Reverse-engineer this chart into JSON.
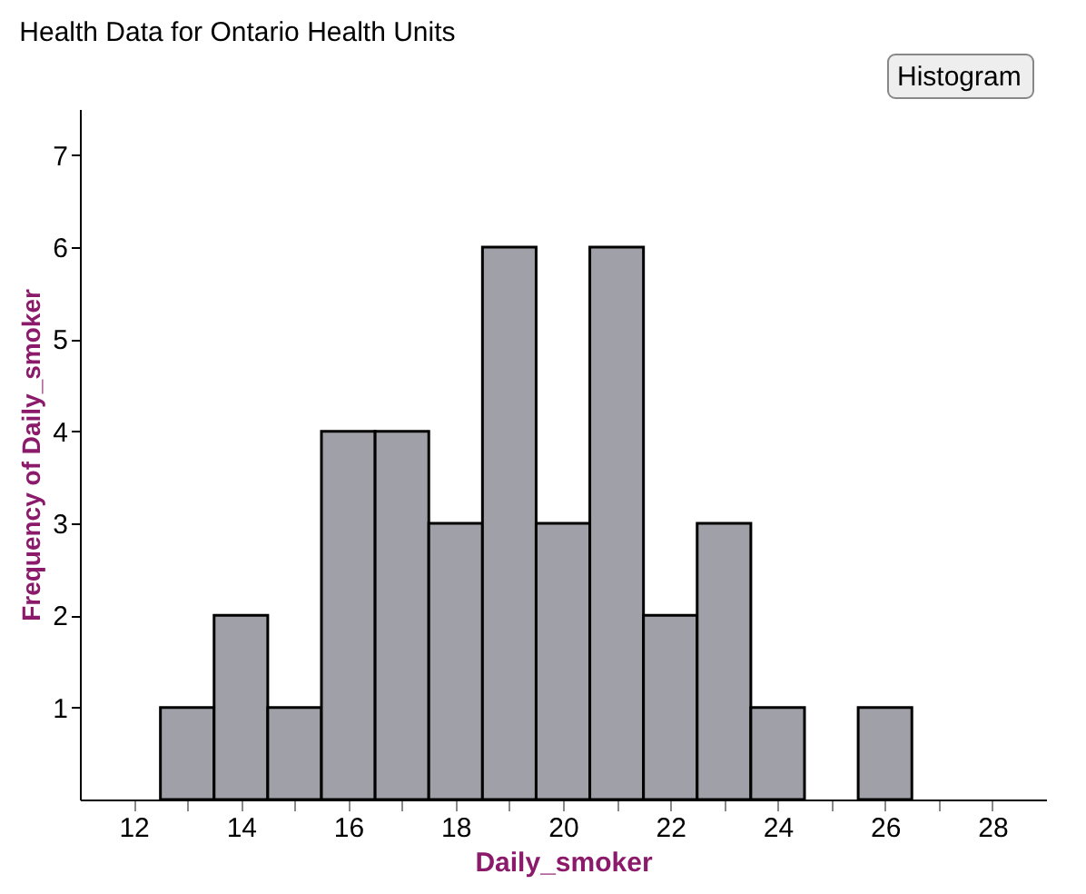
{
  "chart_data": {
    "type": "histogram",
    "title": "Health Data for Ontario Health Units",
    "xlabel": "Daily_smoker",
    "ylabel": "Frequency of Daily_smoker",
    "bins": [
      12.5,
      13.5,
      14.5,
      15.5,
      16.5,
      17.5,
      18.5,
      19.5,
      20.5,
      21.5,
      22.5,
      23.5,
      24.5,
      25.5,
      26.5
    ],
    "values": [
      1,
      2,
      1,
      4,
      4,
      3,
      6,
      3,
      6,
      2,
      3,
      1,
      0,
      1
    ],
    "color": "#a0a0a8",
    "xlim": [
      11,
      29
    ],
    "xticks": [
      12,
      {
        "value": 13,
        "label": null
      },
      14,
      {
        "value": 15,
        "label": null
      },
      16,
      {
        "value": 17,
        "label": null
      },
      18,
      {
        "value": 19,
        "label": null
      },
      20,
      {
        "value": 21,
        "label": null
      },
      22,
      {
        "value": 23,
        "label": null
      },
      24,
      {
        "value": 25,
        "label": null
      },
      26,
      {
        "value": 27,
        "label": null
      },
      28
    ],
    "ylim": [
      0,
      7.5
    ],
    "yticks": [
      1,
      2,
      3,
      4,
      5,
      6,
      7
    ],
    "grid": false,
    "annotations": [
      "Histogram"
    ]
  }
}
